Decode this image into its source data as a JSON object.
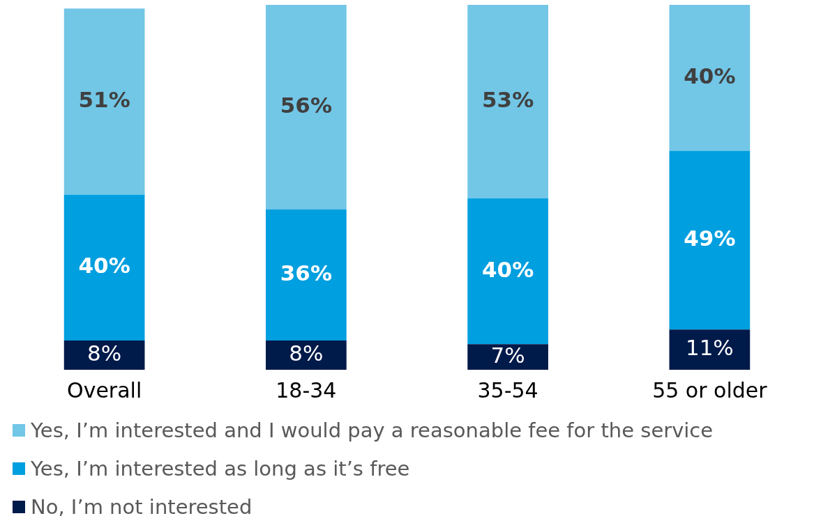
{
  "chart_data": {
    "type": "bar",
    "stacked": true,
    "categories": [
      "Overall",
      "18-34",
      "35-54",
      "55 or older"
    ],
    "series": [
      {
        "name": "No, I’m not interested",
        "color": "#001a4a",
        "values": [
          8,
          8,
          7,
          11
        ],
        "value_labels": [
          "8%",
          "8%",
          "7%",
          "11%"
        ]
      },
      {
        "name": "Yes, I’m interested as long as it’s free",
        "color": "#009fdf",
        "values": [
          40,
          36,
          40,
          49
        ],
        "value_labels": [
          "40%",
          "36%",
          "40%",
          "49%"
        ]
      },
      {
        "name": "Yes, I’m interested and I would pay a reasonable fee for the service",
        "color": "#72c6e6",
        "values": [
          51,
          56,
          53,
          40
        ],
        "value_labels": [
          "51%",
          "56%",
          "53%",
          "40%"
        ]
      }
    ],
    "legend": "bottom",
    "grid": false
  }
}
